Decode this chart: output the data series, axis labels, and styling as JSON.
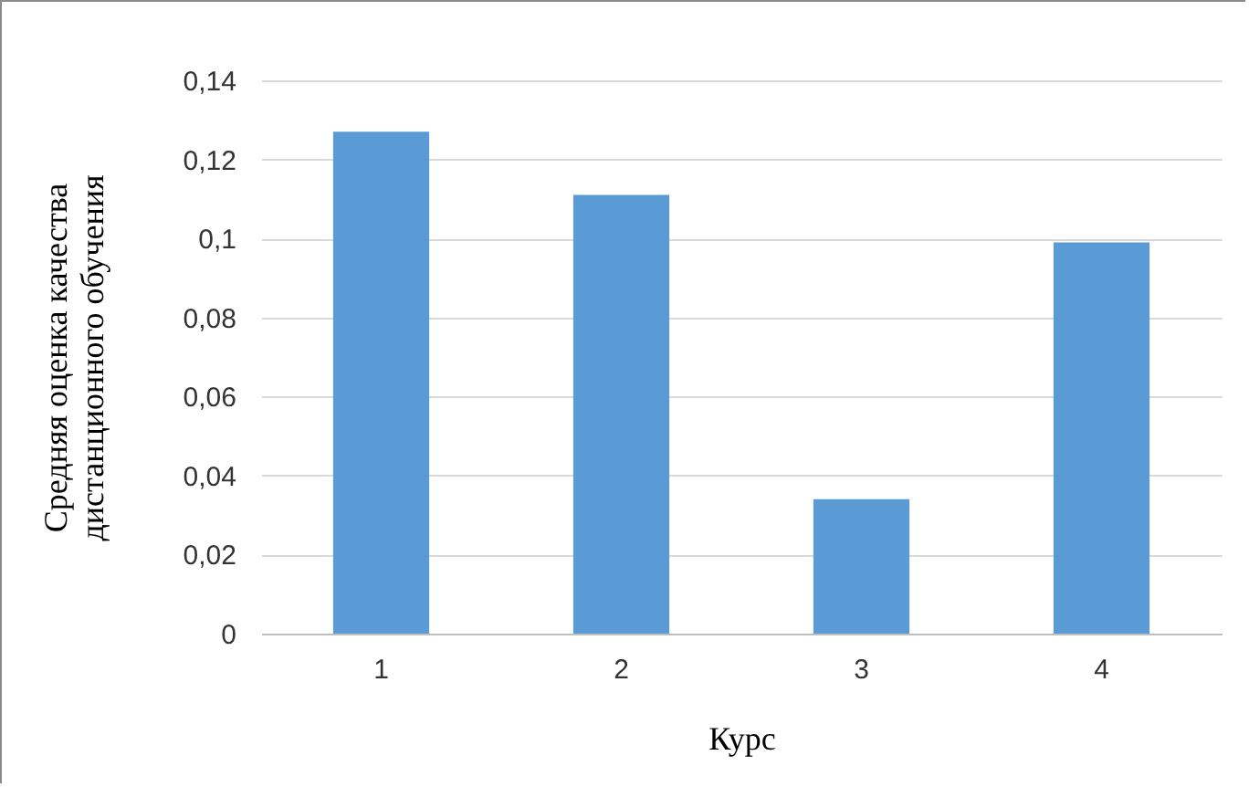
{
  "chart_data": {
    "type": "bar",
    "xlabel": "Курс",
    "ylabel": "Средняя оценка качества\nдистанционного обучения",
    "categories": [
      "1",
      "2",
      "3",
      "4"
    ],
    "values": [
      0.127,
      0.111,
      0.034,
      0.099
    ],
    "color": "#5b9bd5",
    "ylim": [
      0,
      0.14
    ],
    "yticks": [
      {
        "value": 0,
        "label": "0"
      },
      {
        "value": 0.02,
        "label": "0,02"
      },
      {
        "value": 0.04,
        "label": "0,04"
      },
      {
        "value": 0.06,
        "label": "0,06"
      },
      {
        "value": 0.08,
        "label": "0,08"
      },
      {
        "value": 0.1,
        "label": "0,1"
      },
      {
        "value": 0.12,
        "label": "0,12"
      },
      {
        "value": 0.14,
        "label": "0,14"
      }
    ],
    "grid": true
  }
}
